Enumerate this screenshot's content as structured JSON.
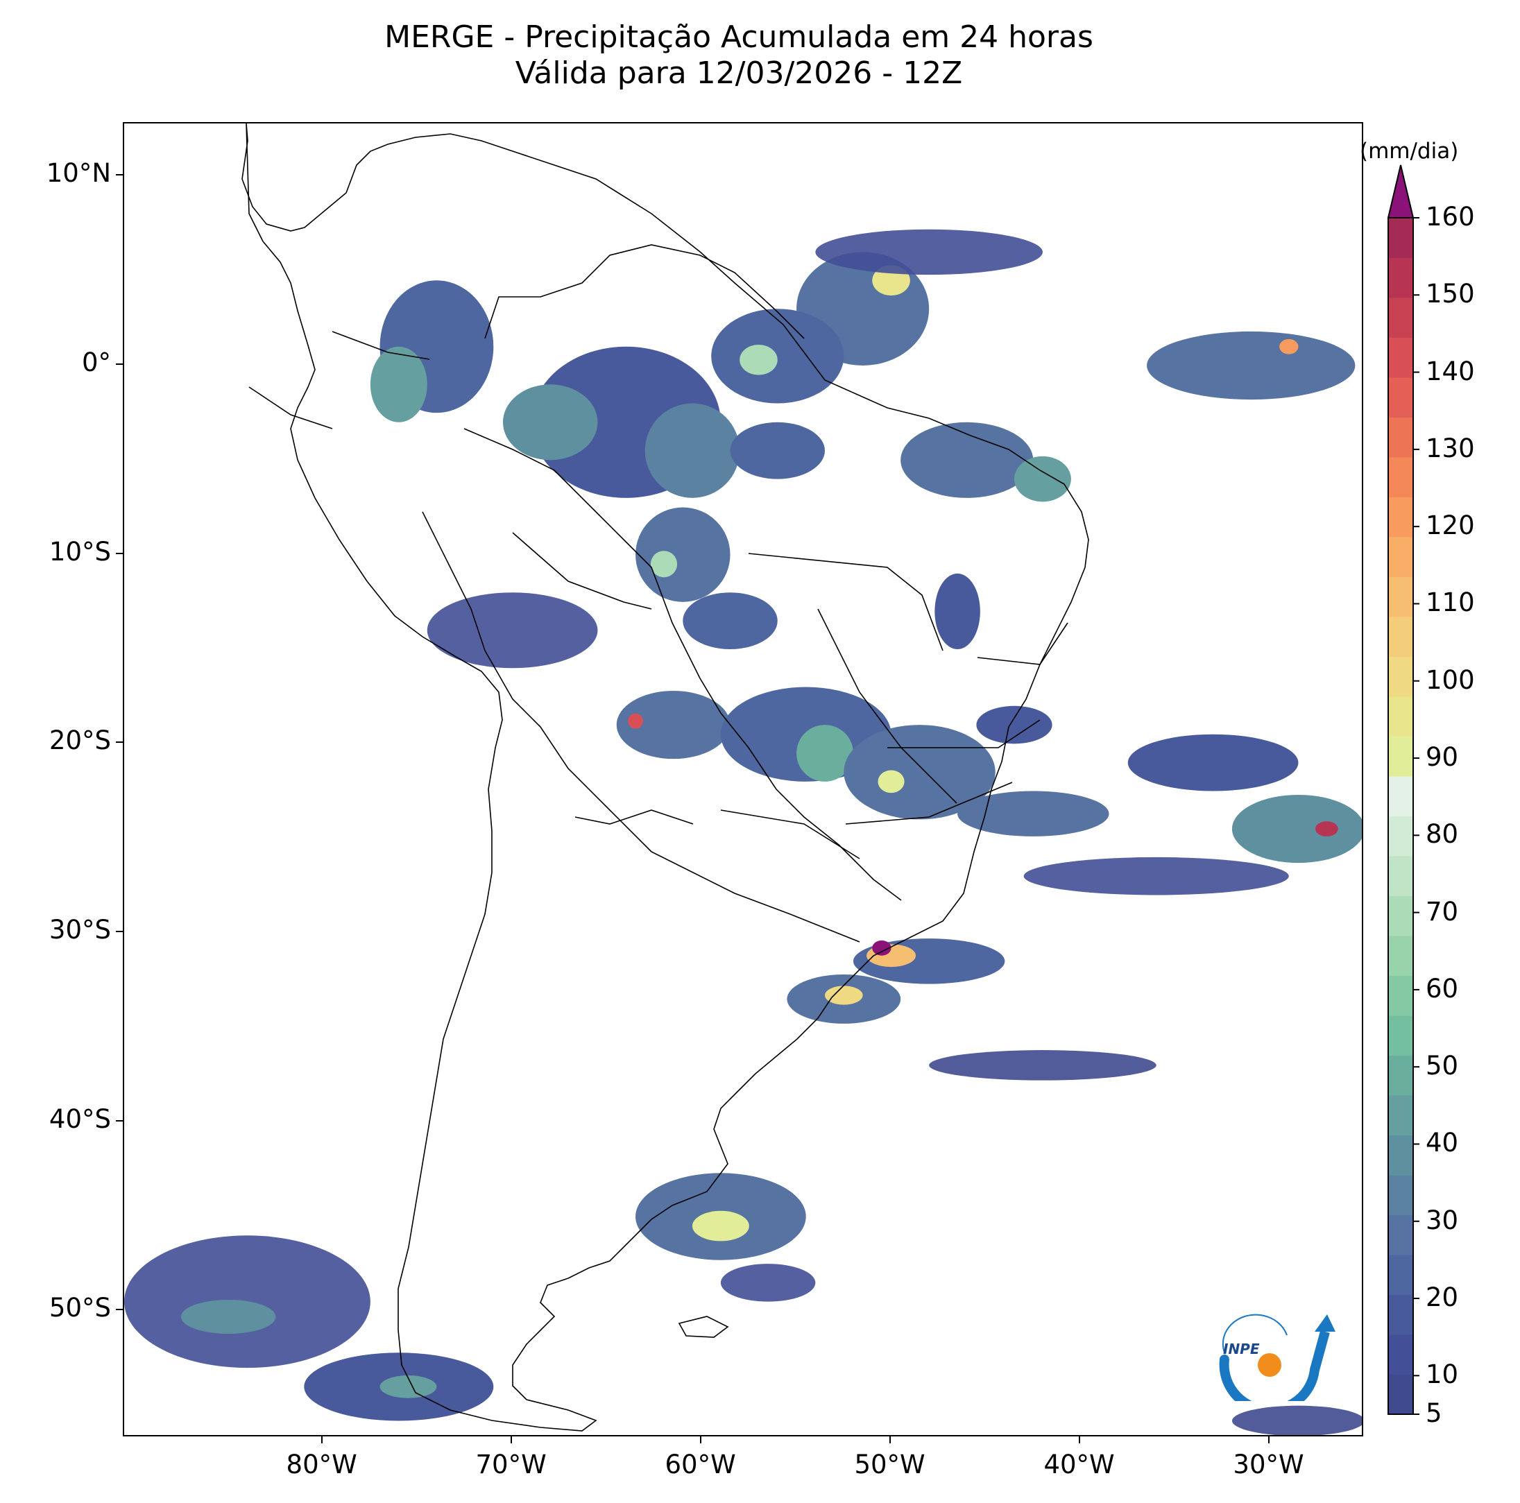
{
  "title": {
    "line1": "MERGE - Precipitação Acumulada em 24 horas",
    "line2": "Válida para 12/03/2026 - 12Z"
  },
  "map": {
    "extent": {
      "lon_min": -90.5,
      "lon_max": -25.0,
      "lat_min": -56.7,
      "lat_max": 12.8
    },
    "lat_ticks": [
      {
        "value": 10,
        "label": "10°N"
      },
      {
        "value": 0,
        "label": "0°"
      },
      {
        "value": -10,
        "label": "10°S"
      },
      {
        "value": -20,
        "label": "20°S"
      },
      {
        "value": -30,
        "label": "30°S"
      },
      {
        "value": -40,
        "label": "40°S"
      },
      {
        "value": -50,
        "label": "50°S"
      }
    ],
    "lon_ticks": [
      {
        "value": -80,
        "label": "80°W"
      },
      {
        "value": -70,
        "label": "70°W"
      },
      {
        "value": -60,
        "label": "60°W"
      },
      {
        "value": -50,
        "label": "50°W"
      },
      {
        "value": -40,
        "label": "40°W"
      },
      {
        "value": -30,
        "label": "30°W"
      }
    ],
    "coastline_color": "#000000",
    "land_color": "#ffffff",
    "precip_areas": [
      {
        "lon": -51.5,
        "lat": 3.0,
        "rx": 3.5,
        "ry": 3.0,
        "mm": 30
      },
      {
        "lon": -50.0,
        "lat": 4.5,
        "rx": 1.0,
        "ry": 0.8,
        "mm": 95
      },
      {
        "lon": -48.0,
        "lat": 6.0,
        "rx": 6.0,
        "ry": 1.2,
        "mm": 12
      },
      {
        "lon": -56.0,
        "lat": 0.5,
        "rx": 3.5,
        "ry": 2.5,
        "mm": 25
      },
      {
        "lon": -57.0,
        "lat": 0.3,
        "rx": 1.0,
        "ry": 0.8,
        "mm": 70
      },
      {
        "lon": -64.0,
        "lat": -3.0,
        "rx": 5.0,
        "ry": 4.0,
        "mm": 20
      },
      {
        "lon": -60.5,
        "lat": -4.5,
        "rx": 2.5,
        "ry": 2.5,
        "mm": 35
      },
      {
        "lon": -68.0,
        "lat": -3.0,
        "rx": 2.5,
        "ry": 2.0,
        "mm": 40
      },
      {
        "lon": -74.0,
        "lat": 1.0,
        "rx": 3.0,
        "ry": 3.5,
        "mm": 25
      },
      {
        "lon": -76.0,
        "lat": -1.0,
        "rx": 1.5,
        "ry": 2.0,
        "mm": 45
      },
      {
        "lon": -56.0,
        "lat": -4.5,
        "rx": 2.5,
        "ry": 1.5,
        "mm": 25
      },
      {
        "lon": -46.0,
        "lat": -5.0,
        "rx": 3.5,
        "ry": 2.0,
        "mm": 30
      },
      {
        "lon": -42.0,
        "lat": -6.0,
        "rx": 1.5,
        "ry": 1.2,
        "mm": 45
      },
      {
        "lon": -61.0,
        "lat": -10.0,
        "rx": 2.5,
        "ry": 2.5,
        "mm": 30
      },
      {
        "lon": -62.0,
        "lat": -10.5,
        "rx": 0.7,
        "ry": 0.7,
        "mm": 70
      },
      {
        "lon": -58.5,
        "lat": -13.5,
        "rx": 2.5,
        "ry": 1.5,
        "mm": 25
      },
      {
        "lon": -70.0,
        "lat": -14.0,
        "rx": 4.5,
        "ry": 2.0,
        "mm": 15
      },
      {
        "lon": -46.5,
        "lat": -13.0,
        "rx": 1.2,
        "ry": 2.0,
        "mm": 20
      },
      {
        "lon": -61.5,
        "lat": -19.0,
        "rx": 3.0,
        "ry": 1.8,
        "mm": 30
      },
      {
        "lon": -63.5,
        "lat": -18.8,
        "rx": 0.4,
        "ry": 0.4,
        "mm": 140
      },
      {
        "lon": -54.5,
        "lat": -19.5,
        "rx": 4.5,
        "ry": 2.5,
        "mm": 25
      },
      {
        "lon": -53.5,
        "lat": -20.5,
        "rx": 1.5,
        "ry": 1.5,
        "mm": 50
      },
      {
        "lon": -48.5,
        "lat": -21.5,
        "rx": 4.0,
        "ry": 2.5,
        "mm": 30
      },
      {
        "lon": -50.0,
        "lat": -22.0,
        "rx": 0.7,
        "ry": 0.6,
        "mm": 90
      },
      {
        "lon": -42.5,
        "lat": -23.7,
        "rx": 4.0,
        "ry": 1.2,
        "mm": 30
      },
      {
        "lon": -43.5,
        "lat": -19.0,
        "rx": 2.0,
        "ry": 1.0,
        "mm": 20
      },
      {
        "lon": -33.0,
        "lat": -21.0,
        "rx": 4.5,
        "ry": 1.5,
        "mm": 20
      },
      {
        "lon": -28.5,
        "lat": -24.5,
        "rx": 3.5,
        "ry": 1.8,
        "mm": 40
      },
      {
        "lon": -27.0,
        "lat": -24.5,
        "rx": 0.6,
        "ry": 0.4,
        "mm": 150
      },
      {
        "lon": -36.0,
        "lat": -27.0,
        "rx": 7.0,
        "ry": 1.0,
        "mm": 12
      },
      {
        "lon": -31.0,
        "lat": 0.0,
        "rx": 5.5,
        "ry": 1.8,
        "mm": 30
      },
      {
        "lon": -29.0,
        "lat": 1.0,
        "rx": 0.5,
        "ry": 0.4,
        "mm": 120
      },
      {
        "lon": -48.0,
        "lat": -31.5,
        "rx": 4.0,
        "ry": 1.2,
        "mm": 25
      },
      {
        "lon": -50.0,
        "lat": -31.2,
        "rx": 1.3,
        "ry": 0.6,
        "mm": 110
      },
      {
        "lon": -50.5,
        "lat": -30.8,
        "rx": 0.5,
        "ry": 0.4,
        "mm": 160
      },
      {
        "lon": -52.5,
        "lat": -33.5,
        "rx": 3.0,
        "ry": 1.3,
        "mm": 30
      },
      {
        "lon": -52.5,
        "lat": -33.3,
        "rx": 1.0,
        "ry": 0.5,
        "mm": 100
      },
      {
        "lon": -42.0,
        "lat": -37.0,
        "rx": 6.0,
        "ry": 0.8,
        "mm": 10
      },
      {
        "lon": -59.0,
        "lat": -45.0,
        "rx": 4.5,
        "ry": 2.3,
        "mm": 30
      },
      {
        "lon": -59.0,
        "lat": -45.5,
        "rx": 1.5,
        "ry": 0.8,
        "mm": 90
      },
      {
        "lon": -56.5,
        "lat": -48.5,
        "rx": 2.5,
        "ry": 1.0,
        "mm": 15
      },
      {
        "lon": -84.0,
        "lat": -49.5,
        "rx": 6.5,
        "ry": 3.5,
        "mm": 15
      },
      {
        "lon": -85.0,
        "lat": -50.3,
        "rx": 2.5,
        "ry": 0.9,
        "mm": 40
      },
      {
        "lon": -76.0,
        "lat": -54.0,
        "rx": 5.0,
        "ry": 1.8,
        "mm": 20
      },
      {
        "lon": -75.5,
        "lat": -54.0,
        "rx": 1.5,
        "ry": 0.6,
        "mm": 45
      },
      {
        "lon": -28.5,
        "lat": -55.8,
        "rx": 3.5,
        "ry": 0.8,
        "mm": 10
      }
    ]
  },
  "colorbar": {
    "unit": "(mm/dia)",
    "min": 5,
    "max": 160,
    "tick_values": [
      5,
      10,
      20,
      30,
      40,
      50,
      60,
      70,
      80,
      90,
      100,
      110,
      120,
      130,
      140,
      150,
      160
    ],
    "tick_labels": [
      "5",
      "10",
      "20",
      "30",
      "40",
      "50",
      "60",
      "70",
      "80",
      "90",
      "100",
      "110",
      "120",
      "130",
      "140",
      "150",
      "160"
    ],
    "colors": [
      "#3f4a8f",
      "#434f97",
      "#485a9c",
      "#4f67a0",
      "#5673a2",
      "#5c82a1",
      "#5f90a0",
      "#659f9f",
      "#6aaf9d",
      "#74bf9f",
      "#85c9a4",
      "#99d3ab",
      "#acdbb7",
      "#c1e3c6",
      "#d2ebd7",
      "#e3f1e6",
      "#e1ed98",
      "#e9e58c",
      "#efd983",
      "#f3cd7a",
      "#f6be71",
      "#f7ae67",
      "#f79c5e",
      "#f48858",
      "#ee7456",
      "#e45f55",
      "#d85055",
      "#c94254",
      "#b73553",
      "#a42b55"
    ],
    "extend_color": "#8b1278"
  },
  "logo": {
    "text": "INPE"
  }
}
